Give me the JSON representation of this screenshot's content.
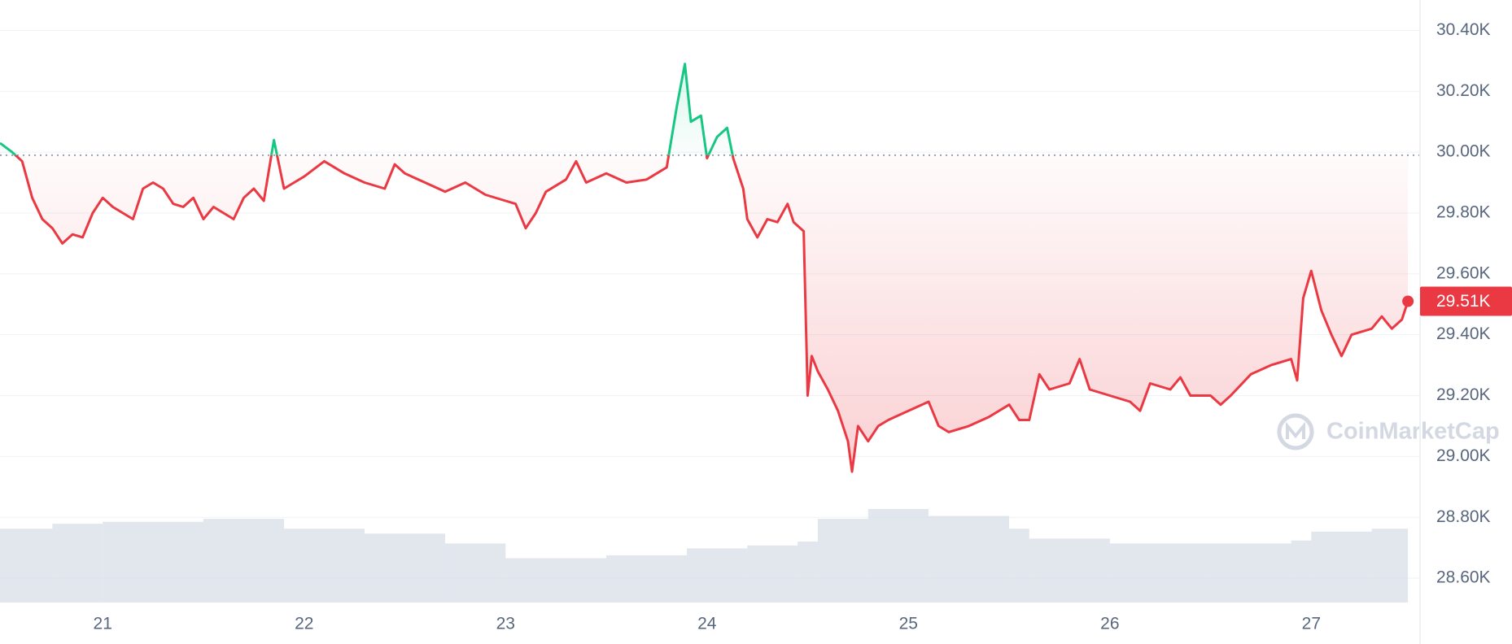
{
  "chart_data": {
    "type": "line",
    "x": [
      20.49,
      20.55,
      20.6,
      20.65,
      20.7,
      20.75,
      20.8,
      20.85,
      20.9,
      20.95,
      21.0,
      21.05,
      21.1,
      21.15,
      21.2,
      21.25,
      21.3,
      21.35,
      21.4,
      21.45,
      21.5,
      21.55,
      21.6,
      21.65,
      21.7,
      21.75,
      21.8,
      21.85,
      21.9,
      21.95,
      22.0,
      22.1,
      22.2,
      22.3,
      22.4,
      22.45,
      22.5,
      22.6,
      22.7,
      22.8,
      22.9,
      23.0,
      23.05,
      23.1,
      23.15,
      23.2,
      23.3,
      23.35,
      23.4,
      23.5,
      23.6,
      23.7,
      23.8,
      23.85,
      23.89,
      23.92,
      23.97,
      24.0,
      24.05,
      24.1,
      24.13,
      24.18,
      24.2,
      24.25,
      24.3,
      24.35,
      24.4,
      24.43,
      24.48,
      24.5,
      24.52,
      24.55,
      24.6,
      24.65,
      24.7,
      24.72,
      24.75,
      24.8,
      24.85,
      24.9,
      25.0,
      25.1,
      25.15,
      25.2,
      25.3,
      25.4,
      25.5,
      25.55,
      25.6,
      25.65,
      25.7,
      25.8,
      25.85,
      25.9,
      26.0,
      26.1,
      26.15,
      26.2,
      26.3,
      26.35,
      26.4,
      26.5,
      26.55,
      26.6,
      26.7,
      26.8,
      26.9,
      26.93,
      26.96,
      27.0,
      27.05,
      27.1,
      27.15,
      27.2,
      27.3,
      27.35,
      27.4,
      27.45,
      27.48
    ],
    "values": [
      30.03,
      30.0,
      29.97,
      29.85,
      29.78,
      29.75,
      29.7,
      29.73,
      29.72,
      29.8,
      29.85,
      29.82,
      29.8,
      29.78,
      29.88,
      29.9,
      29.88,
      29.83,
      29.82,
      29.85,
      29.78,
      29.82,
      29.8,
      29.78,
      29.85,
      29.88,
      29.84,
      30.04,
      29.88,
      29.9,
      29.92,
      29.97,
      29.93,
      29.9,
      29.88,
      29.96,
      29.93,
      29.9,
      29.87,
      29.9,
      29.86,
      29.84,
      29.83,
      29.75,
      29.8,
      29.87,
      29.91,
      29.97,
      29.9,
      29.93,
      29.9,
      29.91,
      29.95,
      30.15,
      30.29,
      30.1,
      30.12,
      29.98,
      30.05,
      30.08,
      29.98,
      29.88,
      29.78,
      29.72,
      29.78,
      29.77,
      29.83,
      29.77,
      29.74,
      29.2,
      29.33,
      29.28,
      29.22,
      29.15,
      29.05,
      28.95,
      29.1,
      29.05,
      29.1,
      29.12,
      29.15,
      29.18,
      29.1,
      29.08,
      29.1,
      29.13,
      29.17,
      29.12,
      29.12,
      29.27,
      29.22,
      29.24,
      29.32,
      29.22,
      29.2,
      29.18,
      29.15,
      29.24,
      29.22,
      29.26,
      29.2,
      29.2,
      29.17,
      29.2,
      29.27,
      29.3,
      29.32,
      29.25,
      29.52,
      29.61,
      29.48,
      29.4,
      29.33,
      29.4,
      29.42,
      29.46,
      29.42,
      29.45,
      29.51
    ],
    "baseline": 29.99,
    "up_color": "#16c784",
    "down_color": "#ea3943",
    "last_label": "29.51K",
    "xlim": [
      20.49,
      27.54
    ],
    "xticks": [
      21,
      22,
      23,
      24,
      25,
      26,
      27
    ],
    "ylim": [
      28.52,
      30.5
    ],
    "yticks": [
      {
        "value": 28.6,
        "label": "28.60K"
      },
      {
        "value": 28.8,
        "label": "28.80K"
      },
      {
        "value": 29.0,
        "label": "29.00K"
      },
      {
        "value": 29.2,
        "label": "29.20K"
      },
      {
        "value": 29.4,
        "label": "29.40K"
      },
      {
        "value": 29.6,
        "label": "29.60K"
      },
      {
        "value": 29.8,
        "label": "29.80K"
      },
      {
        "value": 30.0,
        "label": "30.00K"
      },
      {
        "value": 30.2,
        "label": "30.20K"
      },
      {
        "value": 30.4,
        "label": "30.40K"
      }
    ],
    "grid": true,
    "volume": {
      "color": "#d6dbe6",
      "x": [
        20.49,
        20.75,
        21.0,
        21.5,
        21.9,
        22.3,
        22.7,
        23.0,
        23.5,
        23.9,
        24.2,
        24.45,
        24.55,
        24.8,
        25.1,
        25.5,
        25.6,
        26.0,
        26.5,
        26.9,
        27.0,
        27.3
      ],
      "values": [
        75,
        80,
        82,
        85,
        75,
        70,
        60,
        45,
        48,
        55,
        58,
        62,
        85,
        95,
        88,
        75,
        65,
        60,
        60,
        63,
        72,
        75
      ]
    },
    "watermark": "CoinMarketCap"
  }
}
